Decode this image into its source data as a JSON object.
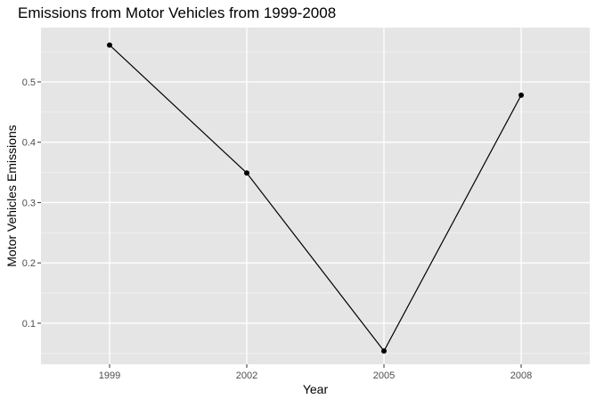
{
  "chart_data": {
    "type": "line",
    "title": "Emissions from Motor Vehicles from 1999-2008",
    "xlabel": "Year",
    "ylabel": "Motor Vehicles Emissions",
    "x": [
      1999,
      2002,
      2005,
      2008
    ],
    "values": [
      0.561,
      0.349,
      0.054,
      0.478
    ],
    "xlim": [
      1997.5,
      2009.5
    ],
    "ylim": [
      0.032,
      0.59
    ],
    "x_ticks": [
      1999,
      2002,
      2005,
      2008
    ],
    "x_tick_labels": [
      "1999",
      "2002",
      "2005",
      "2008"
    ],
    "y_ticks": [
      0.1,
      0.2,
      0.3,
      0.4,
      0.5
    ],
    "y_tick_labels": [
      "0.1",
      "0.2",
      "0.3",
      "0.4",
      "0.5"
    ],
    "y_minor_ticks": [
      0.05,
      0.15,
      0.25,
      0.35,
      0.45,
      0.55
    ],
    "grid": true,
    "legend": "none",
    "colors": {
      "panel_background": "#e5e5e5",
      "grid_major": "#ffffff",
      "grid_minor": "#f2f2f2",
      "line": "#000000",
      "point": "#000000",
      "tick_text": "#4d4d4d",
      "axis_title": "#000000"
    }
  }
}
